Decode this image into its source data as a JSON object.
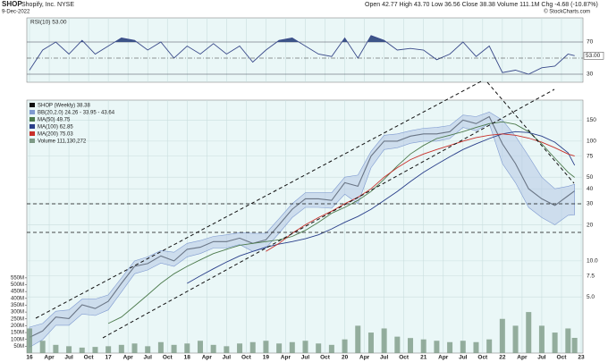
{
  "chart_data": {
    "type": "line",
    "title": "SHOP",
    "subtitle": "Shopify, Inc. NYSE",
    "date": "9-Dec-2022",
    "quote": "Open 42.77 High 43.70 Low 36.56 Close 38.38 Volume 111.1M Chg -4.68 (-10.87%)",
    "credit": "© StockCharts.com",
    "log": true,
    "grid": true,
    "x": [
      "2016-01",
      "2016-03",
      "2016-05",
      "2016-07",
      "2016-09",
      "2016-11",
      "2017-01",
      "2017-03",
      "2017-05",
      "2017-07",
      "2017-09",
      "2017-11",
      "2018-01",
      "2018-03",
      "2018-05",
      "2018-07",
      "2018-09",
      "2018-11",
      "2019-01",
      "2019-03",
      "2019-05",
      "2019-07",
      "2019-09",
      "2019-11",
      "2020-01",
      "2020-03",
      "2020-05",
      "2020-07",
      "2020-09",
      "2020-11",
      "2021-01",
      "2021-03",
      "2021-05",
      "2021-07",
      "2021-09",
      "2021-11",
      "2022-01",
      "2022-03",
      "2022-05",
      "2022-07",
      "2022-09",
      "2022-11",
      "2022-12"
    ],
    "xticks": [
      {
        "value": "2016-01",
        "label": "16"
      },
      {
        "value": "2016-04",
        "label": "Apr"
      },
      {
        "value": "2016-07",
        "label": "Jul"
      },
      {
        "value": "2016-10",
        "label": "Oct"
      },
      {
        "value": "2017-01",
        "label": "17"
      },
      {
        "value": "2017-04",
        "label": "Apr"
      },
      {
        "value": "2017-07",
        "label": "Jul"
      },
      {
        "value": "2017-10",
        "label": "Oct"
      },
      {
        "value": "2018-01",
        "label": "18"
      },
      {
        "value": "2018-04",
        "label": "Apr"
      },
      {
        "value": "2018-07",
        "label": "Jul"
      },
      {
        "value": "2018-10",
        "label": "Oct"
      },
      {
        "value": "2019-01",
        "label": "19"
      },
      {
        "value": "2019-04",
        "label": "Apr"
      },
      {
        "value": "2019-07",
        "label": "Jul"
      },
      {
        "value": "2019-10",
        "label": "Oct"
      },
      {
        "value": "2020-01",
        "label": "20"
      },
      {
        "value": "2020-04",
        "label": "Apr"
      },
      {
        "value": "2020-07",
        "label": "Jul"
      },
      {
        "value": "2020-10",
        "label": "Oct"
      },
      {
        "value": "2021-01",
        "label": "21"
      },
      {
        "value": "2021-04",
        "label": "Apr"
      },
      {
        "value": "2021-07",
        "label": "Jul"
      },
      {
        "value": "2021-10",
        "label": "Oct"
      },
      {
        "value": "2022-01",
        "label": "22"
      },
      {
        "value": "2022-04",
        "label": "Apr"
      },
      {
        "value": "2022-07",
        "label": "Jul"
      },
      {
        "value": "2022-10",
        "label": "Oct"
      },
      {
        "value": "2023-01",
        "label": "23"
      }
    ],
    "ylim": [
      1.7,
      220
    ],
    "yticks": [
      150,
      100,
      75,
      50,
      40,
      30,
      20,
      {
        "value": 10,
        "label": "10.0"
      },
      {
        "value": 7.5,
        "label": "7.5"
      },
      {
        "value": 5,
        "label": "5.0"
      }
    ],
    "y2lim": [
      0,
      1850000000
    ],
    "y2ticks": [
      {
        "value": 550000000,
        "label": "550M"
      },
      {
        "value": 500000000,
        "label": "500M"
      },
      {
        "value": 450000000,
        "label": "450M"
      },
      {
        "value": 400000000,
        "label": "400M"
      },
      {
        "value": 350000000,
        "label": "350M"
      },
      {
        "value": 300000000,
        "label": "300M"
      },
      {
        "value": 250000000,
        "label": "250M"
      },
      {
        "value": 200000000,
        "label": "200M"
      },
      {
        "value": 150000000,
        "label": "150M"
      },
      {
        "value": 100000000,
        "label": "100M"
      },
      {
        "value": 50000000,
        "label": "50M"
      }
    ],
    "series": [
      {
        "name": "SHOP (Weekly) 38.38",
        "color": "#111111",
        "values": [
          2.3,
          2.6,
          3.4,
          3.3,
          4.3,
          4.0,
          4.6,
          6.5,
          9.0,
          9.5,
          11.0,
          10.0,
          12.5,
          13.0,
          14.5,
          14.5,
          15.5,
          14.0,
          15.0,
          20.0,
          27.0,
          33.0,
          33.0,
          32.0,
          45,
          42,
          75,
          100,
          100,
          110,
          115,
          115,
          120,
          150,
          140,
          160,
          95,
          65,
          40,
          33,
          29,
          35,
          38.38
        ]
      },
      {
        "name": "BB(20,2.0) 24.26 - 33.95 - 43.64",
        "color": "#7f9ad0",
        "band": true,
        "upper": [
          2.8,
          3.0,
          3.8,
          3.9,
          4.8,
          4.8,
          5.2,
          7.2,
          10.0,
          10.8,
          12.2,
          11.8,
          14.0,
          14.8,
          16.0,
          16.5,
          17.2,
          17.0,
          17.0,
          22.5,
          30,
          37,
          37,
          37,
          50,
          52,
          82,
          112,
          115,
          122,
          128,
          130,
          135,
          165,
          160,
          175,
          150,
          110,
          75,
          50,
          40,
          42,
          43.64
        ],
        "lower": [
          1.9,
          2.2,
          2.9,
          2.9,
          3.6,
          3.5,
          3.9,
          5.5,
          7.8,
          8.4,
          9.6,
          9.0,
          10.8,
          11.5,
          12.8,
          12.8,
          13.7,
          12.0,
          12.8,
          17.0,
          23,
          28,
          28,
          27.5,
          36,
          30,
          60,
          85,
          88,
          96,
          100,
          100,
          105,
          130,
          122,
          140,
          65,
          45,
          28,
          23,
          20,
          24,
          24.26
        ]
      },
      {
        "name": "MA(50) 49.75",
        "color": "#4c7a4c",
        "values": [
          null,
          null,
          null,
          null,
          null,
          null,
          3.0,
          3.4,
          4.2,
          5.2,
          6.5,
          7.8,
          9.0,
          10.2,
          11.5,
          12.5,
          13.5,
          14.0,
          14.5,
          15,
          16,
          18,
          21,
          25,
          28,
          32,
          38,
          48,
          62,
          78,
          92,
          105,
          112,
          120,
          130,
          140,
          145,
          138,
          120,
          95,
          72,
          55,
          49.75
        ]
      },
      {
        "name": "MA(100) 62.85",
        "color": "#2a3f8a",
        "values": [
          null,
          null,
          null,
          null,
          null,
          null,
          null,
          null,
          null,
          null,
          null,
          null,
          6.5,
          7.5,
          8.6,
          9.8,
          11,
          12,
          13,
          13.8,
          14.5,
          15.3,
          16.5,
          18.5,
          21,
          23.5,
          27,
          32,
          38,
          46,
          55,
          64,
          74,
          85,
          95,
          105,
          115,
          120,
          118,
          110,
          98,
          80,
          62.85
        ]
      },
      {
        "name": "MA(200) 75.03",
        "color": "#c8302a",
        "values": [
          null,
          null,
          null,
          null,
          null,
          null,
          null,
          null,
          null,
          null,
          null,
          null,
          null,
          null,
          null,
          null,
          null,
          null,
          12,
          14,
          17,
          20,
          23,
          26,
          30,
          34,
          40,
          50,
          60,
          70,
          78,
          85,
          92,
          100,
          107,
          112,
          115,
          112,
          106,
          98,
          88,
          78,
          75.03
        ]
      },
      {
        "name": "Volume 111,130,272",
        "color": "#7d9a86",
        "axis": "y2",
        "bars": true,
        "values": [
          180000000,
          90000000,
          60000000,
          50000000,
          40000000,
          45000000,
          50000000,
          60000000,
          70000000,
          50000000,
          80000000,
          60000000,
          70000000,
          90000000,
          60000000,
          50000000,
          70000000,
          80000000,
          90000000,
          70000000,
          80000000,
          90000000,
          70000000,
          60000000,
          100000000,
          200000000,
          150000000,
          180000000,
          120000000,
          110000000,
          100000000,
          90000000,
          80000000,
          90000000,
          80000000,
          100000000,
          250000000,
          200000000,
          300000000,
          200000000,
          150000000,
          180000000,
          111130272
        ]
      }
    ],
    "rsi": {
      "label": "RSI(10) 53.00",
      "last_label": "53.00",
      "color": "#3a4a8a",
      "fill": "#3d5588",
      "ylim": [
        20,
        100
      ],
      "yticks": [
        70,
        50,
        30
      ],
      "values": [
        35,
        60,
        70,
        55,
        72,
        55,
        65,
        75,
        72,
        60,
        70,
        50,
        65,
        55,
        68,
        55,
        65,
        45,
        60,
        72,
        75,
        65,
        55,
        52,
        75,
        50,
        78,
        72,
        60,
        62,
        60,
        48,
        55,
        70,
        52,
        65,
        32,
        35,
        30,
        38,
        40,
        55,
        53
      ]
    }
  }
}
